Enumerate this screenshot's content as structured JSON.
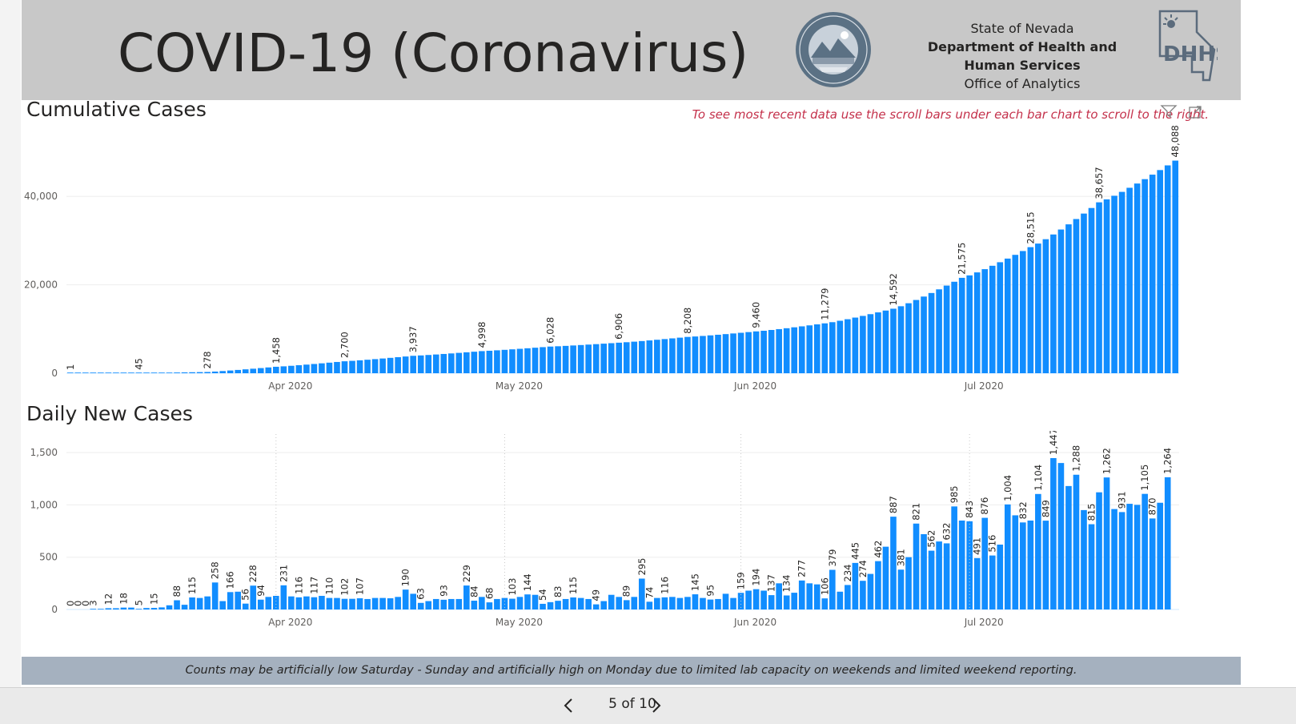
{
  "header": {
    "title": "COVID-19 (Coronavirus)",
    "org_line1": "State of Nevada",
    "org_line2": "Department of Health and",
    "org_line3": "Human Services",
    "org_line4": "Office of Analytics",
    "seal_icon": "nevada-state-seal-icon",
    "logo_icon": "dhhs-logo-icon"
  },
  "hint_text": "To see most recent data use the scroll bars under each bar chart to scroll to the right.",
  "footer_note": "Counts may be artificially low Saturday - Sunday and artificially high on Monday due to limited lab capacity on weekends and limited weekend reporting.",
  "pager": {
    "label": "5 of 10",
    "prev_icon": "chevron-left-icon",
    "next_icon": "chevron-right-icon"
  },
  "colors": {
    "bar": "#118dff",
    "header_bg": "#c8c8c8",
    "footer_bg": "#a5b1bf",
    "hint": "#c4314b"
  },
  "chart_data": [
    {
      "type": "bar",
      "title": "Cumulative Cases",
      "x_start": "2020-03-05",
      "x_end": "2020-07-28",
      "x_tick_labels": [
        "Apr 2020",
        "May 2020",
        "Jun 2020",
        "Jul 2020"
      ],
      "y_ticks": [
        0,
        20000,
        40000
      ],
      "y_tick_labels": [
        "0",
        "20,000",
        "40,000"
      ],
      "ylim": [
        0,
        50000
      ],
      "labeled_points": [
        {
          "date": "2020-03-05",
          "value": 1,
          "label": "1"
        },
        {
          "date": "2020-03-14",
          "value": 45,
          "label": "45"
        },
        {
          "date": "2020-03-23",
          "value": 278,
          "label": "278"
        },
        {
          "date": "2020-04-01",
          "value": 1458,
          "label": "1,458"
        },
        {
          "date": "2020-04-10",
          "value": 2700,
          "label": "2,700"
        },
        {
          "date": "2020-04-19",
          "value": 3937,
          "label": "3,937"
        },
        {
          "date": "2020-04-28",
          "value": 4998,
          "label": "4,998"
        },
        {
          "date": "2020-05-07",
          "value": 6028,
          "label": "6,028"
        },
        {
          "date": "2020-05-16",
          "value": 6906,
          "label": "6,906"
        },
        {
          "date": "2020-05-25",
          "value": 8208,
          "label": "8,208"
        },
        {
          "date": "2020-06-03",
          "value": 9460,
          "label": "9,460"
        },
        {
          "date": "2020-06-12",
          "value": 11279,
          "label": "11,279"
        },
        {
          "date": "2020-06-21",
          "value": 14592,
          "label": "14,592"
        },
        {
          "date": "2020-06-30",
          "value": 21575,
          "label": "21,575"
        },
        {
          "date": "2020-07-09",
          "value": 28515,
          "label": "28,515"
        },
        {
          "date": "2020-07-18",
          "value": 38657,
          "label": "38,657"
        },
        {
          "date": "2020-07-28",
          "value": 48088,
          "label": "48,088"
        }
      ]
    },
    {
      "type": "bar",
      "title": "Daily New Cases",
      "x_start": "2020-03-05",
      "x_end": "2020-07-28",
      "x_tick_labels": [
        "Apr 2020",
        "May 2020",
        "Jun 2020",
        "Jul 2020"
      ],
      "y_ticks": [
        0,
        500,
        1000,
        1500
      ],
      "y_tick_labels": [
        "0",
        "500",
        "1,000",
        "1,500"
      ],
      "ylim": [
        0,
        1600
      ],
      "values": [
        0,
        0,
        0,
        3,
        3,
        12,
        12,
        18,
        18,
        5,
        14,
        15,
        20,
        40,
        88,
        45,
        115,
        110,
        125,
        258,
        80,
        166,
        170,
        56,
        228,
        94,
        120,
        130,
        231,
        125,
        116,
        125,
        117,
        130,
        110,
        110,
        102,
        102,
        107,
        100,
        110,
        110,
        107,
        120,
        190,
        150,
        63,
        80,
        100,
        93,
        100,
        100,
        229,
        84,
        120,
        68,
        100,
        110,
        103,
        120,
        144,
        140,
        54,
        70,
        83,
        100,
        115,
        110,
        100,
        49,
        80,
        140,
        120,
        89,
        120,
        295,
        74,
        110,
        116,
        120,
        110,
        120,
        145,
        110,
        95,
        100,
        150,
        110,
        159,
        180,
        194,
        180,
        137,
        250,
        134,
        160,
        277,
        250,
        240,
        106,
        379,
        170,
        234,
        445,
        274,
        340,
        462,
        600,
        887,
        381,
        500,
        821,
        720,
        562,
        650,
        632,
        985,
        850,
        843,
        491,
        876,
        516,
        620,
        1004,
        900,
        832,
        850,
        1104,
        849,
        1447,
        1400,
        1180,
        1288,
        950,
        815,
        1120,
        1262,
        960,
        931,
        1010,
        1000,
        1105,
        870,
        1020,
        1264
      ],
      "value_labels": {
        "0": "0",
        "1": "0",
        "2": "0",
        "3": "3",
        "5": "12",
        "7": "18",
        "9": "5",
        "11": "15",
        "14": "88",
        "16": "115",
        "19": "258",
        "21": "166",
        "23": "56",
        "24": "228",
        "25": "94",
        "28": "231",
        "30": "116",
        "32": "117",
        "34": "110",
        "36": "102",
        "38": "107",
        "44": "190",
        "46": "63",
        "49": "93",
        "52": "229",
        "53": "84",
        "55": "68",
        "58": "103",
        "60": "144",
        "62": "54",
        "64": "83",
        "66": "115",
        "69": "49",
        "73": "89",
        "75": "295",
        "76": "74",
        "78": "116",
        "82": "145",
        "84": "95",
        "88": "159",
        "90": "194",
        "92": "137",
        "94": "134",
        "96": "277",
        "99": "106",
        "100": "379",
        "102": "234",
        "103": "445",
        "104": "274",
        "106": "462",
        "108": "887",
        "109": "381",
        "111": "821",
        "113": "562",
        "115": "632",
        "116": "985",
        "118": "843",
        "119": "491",
        "120": "876",
        "121": "516",
        "123": "1,004",
        "125": "832",
        "127": "1,104",
        "128": "849",
        "129": "1,447",
        "132": "1,288",
        "134": "815",
        "136": "1,262",
        "138": "931",
        "141": "1,105",
        "142": "870",
        "144": "1,264"
      }
    }
  ]
}
